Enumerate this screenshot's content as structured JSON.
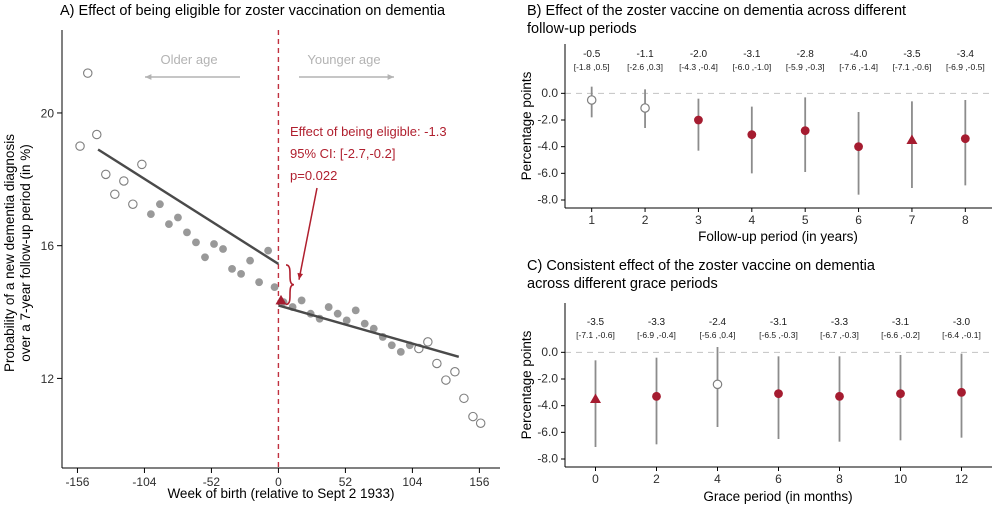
{
  "figure": {
    "background": "#ffffff",
    "colors": {
      "red": "#a51c30",
      "red_dashed": "#c0303f",
      "annotation_red": "#b01f2e",
      "point_gray": "#999999",
      "open_point_stroke": "#7f7f7f",
      "trend_line": "#4a4a4a",
      "error_bar": "#8c8c8c",
      "age_annotation": "#b3b3b3",
      "axis_text": "#2e2e2e",
      "axis_line": "#000000",
      "zero_line": "#c2c2c2"
    }
  },
  "chart_data": [
    {
      "key": "a",
      "type": "scatter",
      "title": "A) Effect of being eligible for zoster vaccination on dementia",
      "xlabel": "Week of birth (relative to Sept 2 1933)",
      "ylabel_line1": "Probability of a new dementia diagnosis",
      "ylabel_line2": "over a 7-year follow-up period (in %)",
      "xlim": [
        -168,
        172
      ],
      "ylim": [
        9.3,
        22.5
      ],
      "xticks": {
        "values": [
          -156,
          -104,
          -52,
          0,
          52,
          104,
          156
        ],
        "labels": [
          "-156",
          "-104",
          "-52",
          "0",
          "52",
          "104",
          "156"
        ]
      },
      "yticks": {
        "values": [
          12,
          16,
          20
        ],
        "labels": [
          "12",
          "16",
          "20"
        ]
      },
      "cutoff_week": 0,
      "older_label": "Older age",
      "younger_label": "Younger age",
      "annotation": {
        "line1": "Effect of being eligible: -1.3",
        "line2": "95% CI: [-2.7,-0.2]",
        "line3": "p=0.022"
      },
      "trend_left": {
        "x1": -140,
        "y1": 18.9,
        "x2": 0,
        "y2": 15.45
      },
      "trend_right": {
        "x1": 0,
        "y1": 14.2,
        "x2": 140,
        "y2": 12.65
      },
      "cutoff_point": {
        "x": 2,
        "y": 14.35
      },
      "points": [
        [
          -154,
          19.0,
          "open"
        ],
        [
          -148,
          21.2,
          "open"
        ],
        [
          -141,
          19.35,
          "open"
        ],
        [
          -134,
          18.15,
          "open"
        ],
        [
          -127,
          17.55,
          "open"
        ],
        [
          -120,
          17.95,
          "open"
        ],
        [
          -113,
          17.25,
          "open"
        ],
        [
          -106,
          18.45,
          "open"
        ],
        [
          -99,
          16.95,
          "filled"
        ],
        [
          -92,
          17.25,
          "filled"
        ],
        [
          -85,
          16.65,
          "filled"
        ],
        [
          -78,
          16.85,
          "filled"
        ],
        [
          -71,
          16.4,
          "filled"
        ],
        [
          -64,
          16.1,
          "filled"
        ],
        [
          -57,
          15.65,
          "filled"
        ],
        [
          -50,
          16.05,
          "filled"
        ],
        [
          -43,
          15.9,
          "filled"
        ],
        [
          -36,
          15.3,
          "filled"
        ],
        [
          -29,
          15.15,
          "filled"
        ],
        [
          -22,
          15.55,
          "filled"
        ],
        [
          -15,
          14.9,
          "filled"
        ],
        [
          -8,
          15.85,
          "filled"
        ],
        [
          -3,
          14.75,
          "filled"
        ],
        [
          4,
          14.3,
          "filled"
        ],
        [
          11,
          14.15,
          "filled"
        ],
        [
          18,
          14.35,
          "filled"
        ],
        [
          25,
          13.95,
          "filled"
        ],
        [
          32,
          13.8,
          "filled"
        ],
        [
          39,
          14.15,
          "filled"
        ],
        [
          46,
          13.95,
          "filled"
        ],
        [
          53,
          13.75,
          "filled"
        ],
        [
          60,
          14.05,
          "filled"
        ],
        [
          67,
          13.65,
          "filled"
        ],
        [
          74,
          13.5,
          "filled"
        ],
        [
          81,
          13.25,
          "filled"
        ],
        [
          88,
          13.0,
          "filled"
        ],
        [
          95,
          12.8,
          "filled"
        ],
        [
          102,
          13.0,
          "filled"
        ],
        [
          109,
          12.9,
          "open"
        ],
        [
          116,
          13.1,
          "open"
        ],
        [
          123,
          12.45,
          "open"
        ],
        [
          130,
          11.95,
          "open"
        ],
        [
          137,
          12.2,
          "open"
        ],
        [
          144,
          11.4,
          "open"
        ],
        [
          151,
          10.85,
          "open"
        ],
        [
          157,
          10.65,
          "open"
        ]
      ]
    },
    {
      "key": "b",
      "type": "forest",
      "title_line1": "B) Effect of the zoster vaccine on dementia across different",
      "title_line2": "follow-up periods",
      "xlabel": "Follow-up period (in years)",
      "ylabel": "Percentage points",
      "ylim": [
        -8.6,
        3.7
      ],
      "yticks": {
        "values": [
          0,
          -2,
          -4,
          -6,
          -8
        ],
        "labels": [
          "0.0",
          "-2.0",
          "-4.0",
          "-6.0",
          "-8.0"
        ]
      },
      "x": [
        1,
        2,
        3,
        4,
        5,
        6,
        7,
        8
      ],
      "xtick_labels": [
        "1",
        "2",
        "3",
        "4",
        "5",
        "6",
        "7",
        "8"
      ],
      "estimates": [
        -0.5,
        -1.1,
        -2.0,
        -3.1,
        -2.8,
        -4.0,
        -3.5,
        -3.4
      ],
      "ci_low": [
        -1.8,
        -2.6,
        -4.3,
        -6.0,
        -5.9,
        -7.6,
        -7.1,
        -6.9
      ],
      "ci_high": [
        0.5,
        0.3,
        -0.4,
        -1.0,
        -0.3,
        -1.4,
        -0.6,
        -0.5
      ],
      "estimate_labels": [
        "-0.5",
        "-1.1",
        "-2.0",
        "-3.1",
        "-2.8",
        "-4.0",
        "-3.5",
        "-3.4"
      ],
      "ci_labels": [
        "[-1.8 ,0.5]",
        "[-2.6 ,0.3]",
        "[-4.3 ,-0.4]",
        "[-6.0 ,-1.0]",
        "[-5.9 ,-0.3]",
        "[-7.6 ,-1.4]",
        "[-7.1 ,-0.6]",
        "[-6.9 ,-0.5]"
      ],
      "markers": [
        "open",
        "open",
        "filled",
        "filled",
        "filled",
        "filled",
        "triangle",
        "filled"
      ],
      "zero_line": true,
      "legend": "none"
    },
    {
      "key": "c",
      "type": "forest",
      "title_line1": "C) Consistent effect of the zoster vaccine on dementia",
      "title_line2": "across different grace periods",
      "xlabel": "Grace period (in months)",
      "ylabel": "Percentage points",
      "ylim": [
        -8.6,
        3.7
      ],
      "yticks": {
        "values": [
          0,
          -2,
          -4,
          -6,
          -8
        ],
        "labels": [
          "0.0",
          "-2.0",
          "-4.0",
          "-6.0",
          "-8.0"
        ]
      },
      "x": [
        0,
        2,
        4,
        6,
        8,
        10,
        12
      ],
      "xtick_labels": [
        "0",
        "2",
        "4",
        "6",
        "8",
        "10",
        "12"
      ],
      "estimates": [
        -3.5,
        -3.3,
        -2.4,
        -3.1,
        -3.3,
        -3.1,
        -3.0
      ],
      "ci_low": [
        -7.1,
        -6.9,
        -5.6,
        -6.5,
        -6.7,
        -6.6,
        -6.4
      ],
      "ci_high": [
        -0.6,
        -0.4,
        0.4,
        -0.3,
        -0.3,
        -0.2,
        -0.1
      ],
      "estimate_labels": [
        "-3.5",
        "-3.3",
        "-2.4",
        "-3.1",
        "-3.3",
        "-3.1",
        "-3.0"
      ],
      "ci_labels": [
        "[-7.1 ,-0.6]",
        "[-6.9 ,-0.4]",
        "[-5.6 ,0.4]",
        "[-6.5 ,-0.3]",
        "[-6.7 ,-0.3]",
        "[-6.6 ,-0.2]",
        "[-6.4 ,-0.1]"
      ],
      "markers": [
        "triangle",
        "filled",
        "open",
        "filled",
        "filled",
        "filled",
        "filled"
      ],
      "zero_line": true,
      "legend": "none"
    }
  ]
}
